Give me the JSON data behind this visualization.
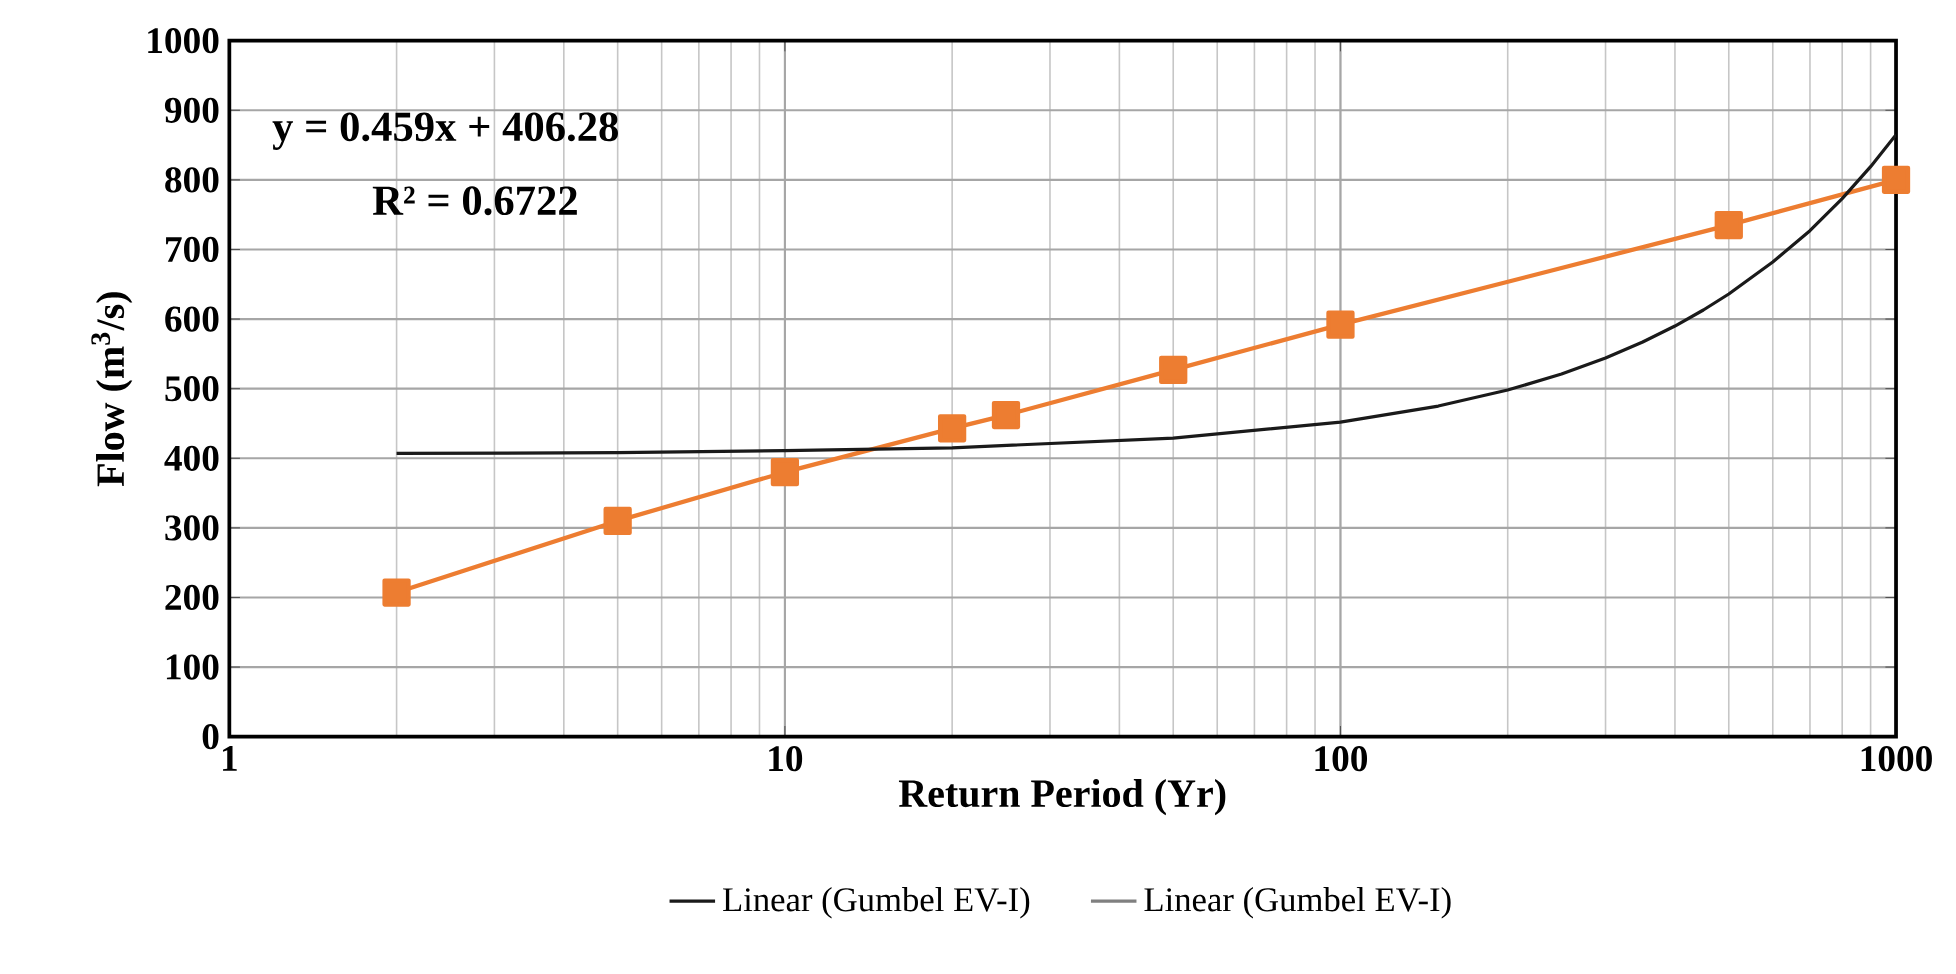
{
  "chart_data": {
    "type": "line",
    "xlabel": "Return Period (Yr)",
    "ylabel": "Flow (m$^{3}$/s)",
    "log": "x",
    "grid": true,
    "legend": "bottom",
    "xlim": [
      1,
      1000
    ],
    "xticks": [
      1,
      10,
      100,
      1000
    ],
    "ylim": [
      0,
      1000
    ],
    "yticks": [
      0,
      100,
      200,
      300,
      400,
      500,
      600,
      700,
      800,
      900,
      1000
    ],
    "series": [
      {
        "color": "#ed7d31",
        "marker": "square",
        "x": [
          2,
          5,
          10,
          20,
          25,
          50,
          100,
          500,
          1000
        ],
        "values": [
          207,
          310,
          380,
          443,
          462,
          527,
          592,
          735,
          800
        ]
      },
      {
        "name": "Linear (Gumbel EV-I)",
        "color": "#1a1a1a",
        "marker": "none",
        "x": [
          2,
          5,
          10,
          20,
          50,
          100,
          150,
          200,
          250,
          300,
          350,
          400,
          450,
          500,
          600,
          700,
          800,
          900,
          1000
        ],
        "values": [
          407,
          408,
          411,
          415,
          429,
          452,
          475,
          498,
          521,
          544,
          567,
          590,
          613,
          636,
          682,
          727,
          773,
          819,
          865
        ]
      }
    ],
    "annotations": [
      "y = 0.459x + 406.28",
      "R² = 0.6722",
      "Linear (Gumbel EV-I)"
    ]
  }
}
